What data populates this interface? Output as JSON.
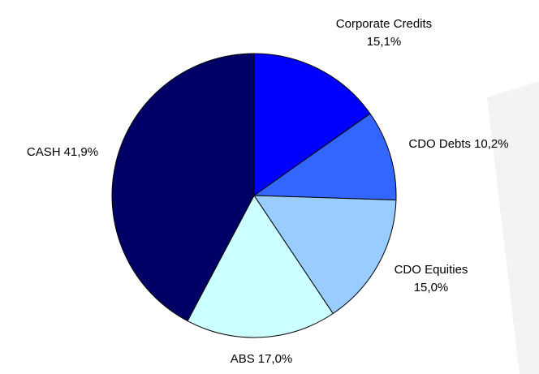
{
  "chart_data": {
    "type": "pie",
    "categories": [
      "Corporate Credits",
      "CDO Debts",
      "CDO Equities",
      "ABS",
      "CASH"
    ],
    "values": [
      15.1,
      10.2,
      15.0,
      17.0,
      41.9
    ],
    "value_labels": [
      "15,1%",
      "10,2%",
      "15,0%",
      "17,0%",
      "41,9%"
    ],
    "colors": [
      "#0000ff",
      "#3366ff",
      "#99ccff",
      "#ccffff",
      "#000066"
    ]
  }
}
